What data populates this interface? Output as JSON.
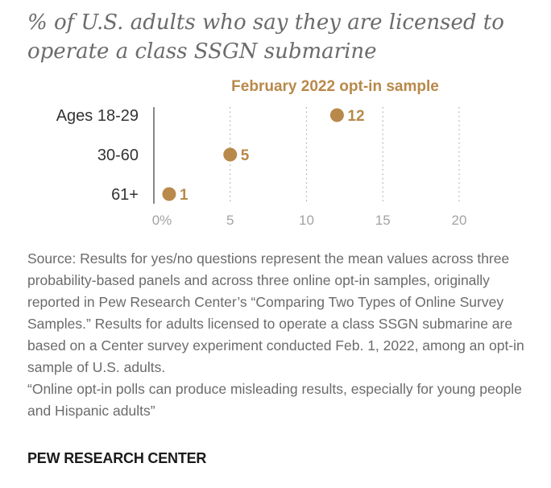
{
  "title": "% of U.S. adults who say they are licensed to operate a class SSGN submarine",
  "source": {
    "note": "Source: Results for yes/no questions represent the mean values across three probability-based panels and across three online opt-in samples, originally reported in Pew Research Center’s “Comparing Two Types of Online Survey Samples.” Results for adults licensed to operate a class SSGN submarine are based on a Center survey experiment conducted Feb. 1, 2022, among an opt-in sample of U.S. adults.",
    "headline": "“Online opt-in polls can produce misleading results, especially for young people and Hispanic adults”"
  },
  "brand": "PEW RESEARCH CENTER",
  "colors": {
    "accent": "#b8894a",
    "axis": "#555555",
    "grid": "#aaaaaa"
  },
  "chart_data": {
    "type": "scatter",
    "title": "% of U.S. adults who say they are licensed to operate a class SSGN submarine",
    "categories": [
      "Ages 18-29",
      "30-60",
      "61+"
    ],
    "series": [
      {
        "name": "February 2022 opt-in sample",
        "values": [
          12,
          5,
          1
        ]
      }
    ],
    "xlim": [
      0,
      20
    ],
    "xticks": [
      0,
      5,
      10,
      15,
      20
    ],
    "xtick_labels": [
      "0%",
      "5",
      "10",
      "15",
      "20"
    ],
    "grid": true,
    "legend": "top-center"
  }
}
